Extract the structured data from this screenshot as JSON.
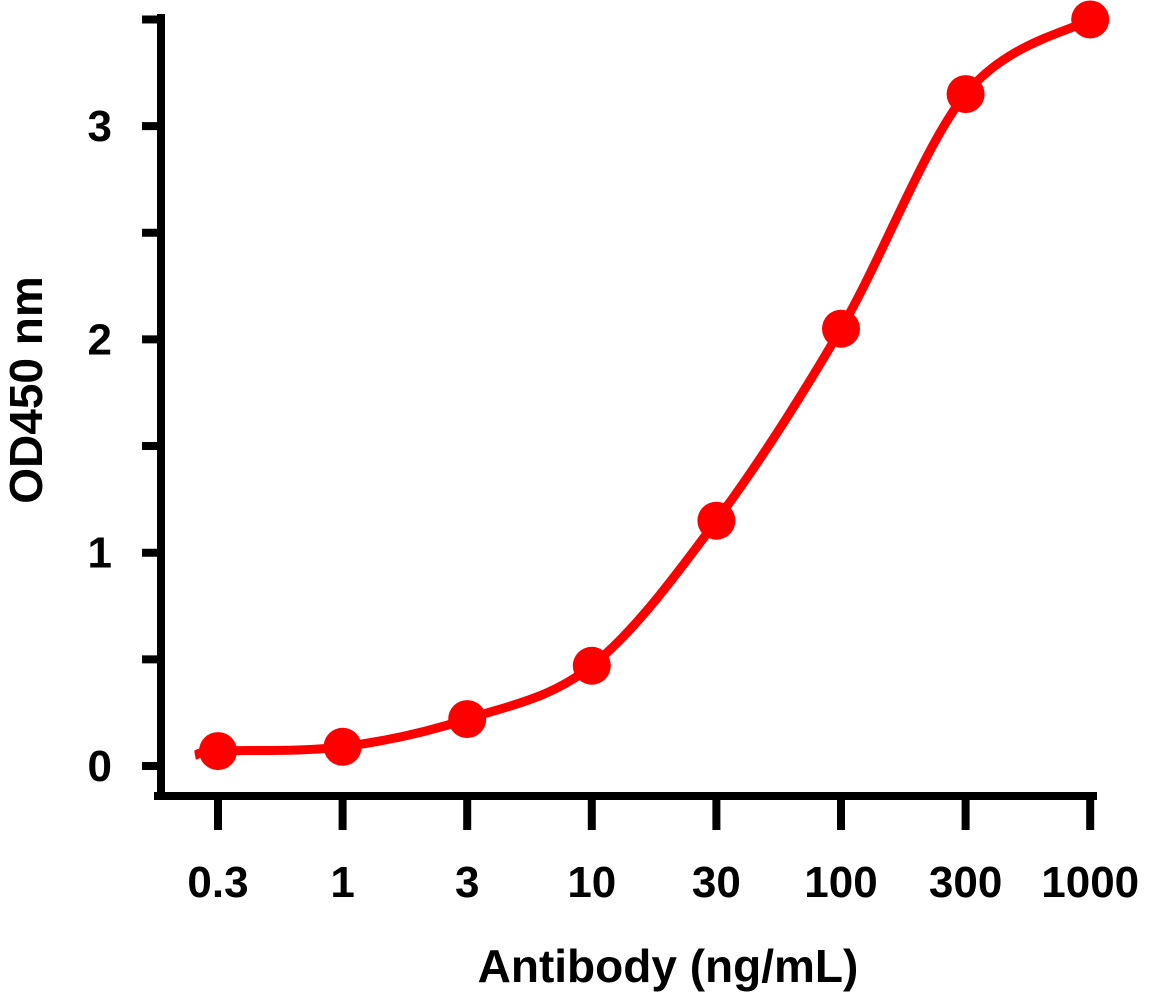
{
  "chart_data": {
    "type": "line",
    "title": "",
    "xlabel": "Antibody (ng/mL)",
    "ylabel": "OD450 nm",
    "x_scale": "log (equally spaced ticks)",
    "categories": [
      "0.3",
      "1",
      "3",
      "10",
      "30",
      "100",
      "300",
      "1000"
    ],
    "ylim": [
      0,
      3.5
    ],
    "yticks": [
      "0",
      "1",
      "2",
      "3"
    ],
    "grid": false,
    "legend": "none",
    "series": [
      {
        "color": "#ff0000",
        "marker": "circle",
        "values": [
          0.07,
          0.09,
          0.22,
          0.47,
          1.15,
          2.05,
          3.15,
          3.5
        ]
      }
    ]
  }
}
